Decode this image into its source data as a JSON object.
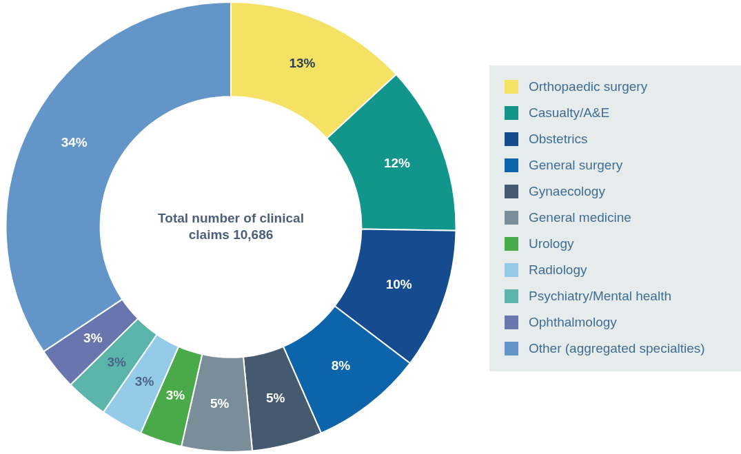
{
  "chart_data": {
    "type": "donut",
    "categories": [
      "Orthopaedic surgery",
      "Casualty/A&E",
      "Obstetrics",
      "General surgery",
      "Gynaecology",
      "General medicine",
      "Urology",
      "Radiology",
      "Psychiatry/Mental health",
      "Ophthalmology",
      "Other (aggregated specialties)"
    ],
    "values": [
      13,
      12,
      10,
      8,
      5,
      5,
      3,
      3,
      3,
      3,
      34
    ],
    "colors": [
      "#f5e265",
      "#12968b",
      "#154b8f",
      "#0c64ab",
      "#455a6e",
      "#7a8e9a",
      "#4aaa4a",
      "#94cbe8",
      "#5bb5ab",
      "#6875ae",
      "#6495c8"
    ],
    "value_labels": [
      "13%",
      "12%",
      "10%",
      "8%",
      "5%",
      "5%",
      "3%",
      "3%",
      "3%",
      "3%",
      "34%"
    ],
    "legend": "right",
    "annotations": [
      "Total number of clinical claims 10,686"
    ]
  }
}
